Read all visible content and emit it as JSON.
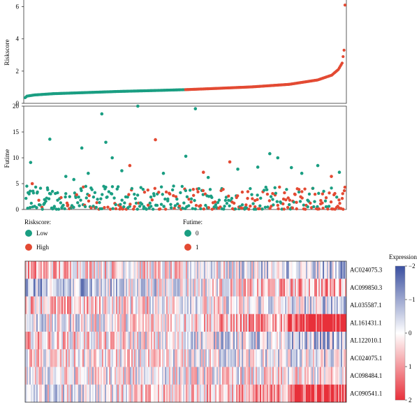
{
  "colors": {
    "low": "#1a9e82",
    "high": "#e34a33",
    "futime0": "#1a9e82",
    "futime1": "#e34a33",
    "heat_neg": "#3a4fa0",
    "heat_mid": "#ffffff",
    "heat_pos": "#e8303a"
  },
  "chart_data": [
    {
      "type": "line",
      "ylabel": "Riskscore",
      "ylim": [
        0,
        6.5
      ],
      "yticks": [
        "0",
        "2",
        "4",
        "6"
      ],
      "n_patients": 340,
      "low_count": 170,
      "curve": {
        "x": [
          0,
          2,
          10,
          30,
          60,
          100,
          140,
          170,
          200,
          240,
          280,
          310,
          325,
          332,
          336,
          338,
          339
        ],
        "y": [
          0.35,
          0.45,
          0.52,
          0.6,
          0.66,
          0.74,
          0.8,
          0.85,
          0.92,
          1.02,
          1.18,
          1.45,
          1.75,
          2.1,
          2.5,
          3.3,
          6.1
        ]
      },
      "series": [
        {
          "name": "Low",
          "color": "#1a9e82"
        },
        {
          "name": "High",
          "color": "#e34a33"
        }
      ]
    },
    {
      "type": "scatter",
      "ylabel": "Futime",
      "ylim": [
        0,
        20
      ],
      "yticks": [
        "0",
        "5",
        "10",
        "15",
        "20"
      ],
      "outliers": [
        {
          "x": 6,
          "y": 9.1,
          "status": 0
        },
        {
          "x": 8,
          "y": 5.0,
          "status": 1
        },
        {
          "x": 30,
          "y": 13.6,
          "status": 0
        },
        {
          "x": 50,
          "y": 6.4,
          "status": 0
        },
        {
          "x": 60,
          "y": 5.8,
          "status": 0
        },
        {
          "x": 70,
          "y": 11.9,
          "status": 0
        },
        {
          "x": 78,
          "y": 7.0,
          "status": 0
        },
        {
          "x": 95,
          "y": 18.5,
          "status": 0
        },
        {
          "x": 100,
          "y": 13.0,
          "status": 0
        },
        {
          "x": 108,
          "y": 10.0,
          "status": 0
        },
        {
          "x": 120,
          "y": 7.5,
          "status": 0
        },
        {
          "x": 130,
          "y": 8.5,
          "status": 1
        },
        {
          "x": 140,
          "y": 20.0,
          "status": 0
        },
        {
          "x": 162,
          "y": 13.5,
          "status": 1
        },
        {
          "x": 172,
          "y": 7.0,
          "status": 0
        },
        {
          "x": 200,
          "y": 10.3,
          "status": 0
        },
        {
          "x": 212,
          "y": 19.5,
          "status": 0
        },
        {
          "x": 222,
          "y": 7.2,
          "status": 1
        },
        {
          "x": 228,
          "y": 6.2,
          "status": 0
        },
        {
          "x": 255,
          "y": 9.2,
          "status": 1
        },
        {
          "x": 265,
          "y": 7.8,
          "status": 0
        },
        {
          "x": 290,
          "y": 8.2,
          "status": 0
        },
        {
          "x": 305,
          "y": 10.8,
          "status": 0
        },
        {
          "x": 315,
          "y": 10.0,
          "status": 0
        },
        {
          "x": 332,
          "y": 8.1,
          "status": 0
        },
        {
          "x": 345,
          "y": 7.0,
          "status": 0
        },
        {
          "x": 365,
          "y": 8.5,
          "status": 0
        },
        {
          "x": 382,
          "y": 6.4,
          "status": 1
        },
        {
          "x": 392,
          "y": 7.2,
          "status": 0
        }
      ],
      "bulk_note_ymax": 4.5
    },
    {
      "type": "heatmap",
      "rows": [
        "AC024075.3",
        "AC099850.3",
        "AL035587.1",
        "AL161431.1",
        "AL122010.1",
        "AC024075.1",
        "AC098484.1",
        "AC090541.1"
      ],
      "colorbar": {
        "title": "Expression",
        "ticks": [
          "−2",
          "−1",
          "0",
          "1",
          "2"
        ]
      }
    }
  ],
  "legend": {
    "riskscore_title": "Riskscore:",
    "riskscore_items": [
      "Low",
      "High"
    ],
    "futime_title": "Futime:",
    "futime_items": [
      "0",
      "1"
    ]
  }
}
